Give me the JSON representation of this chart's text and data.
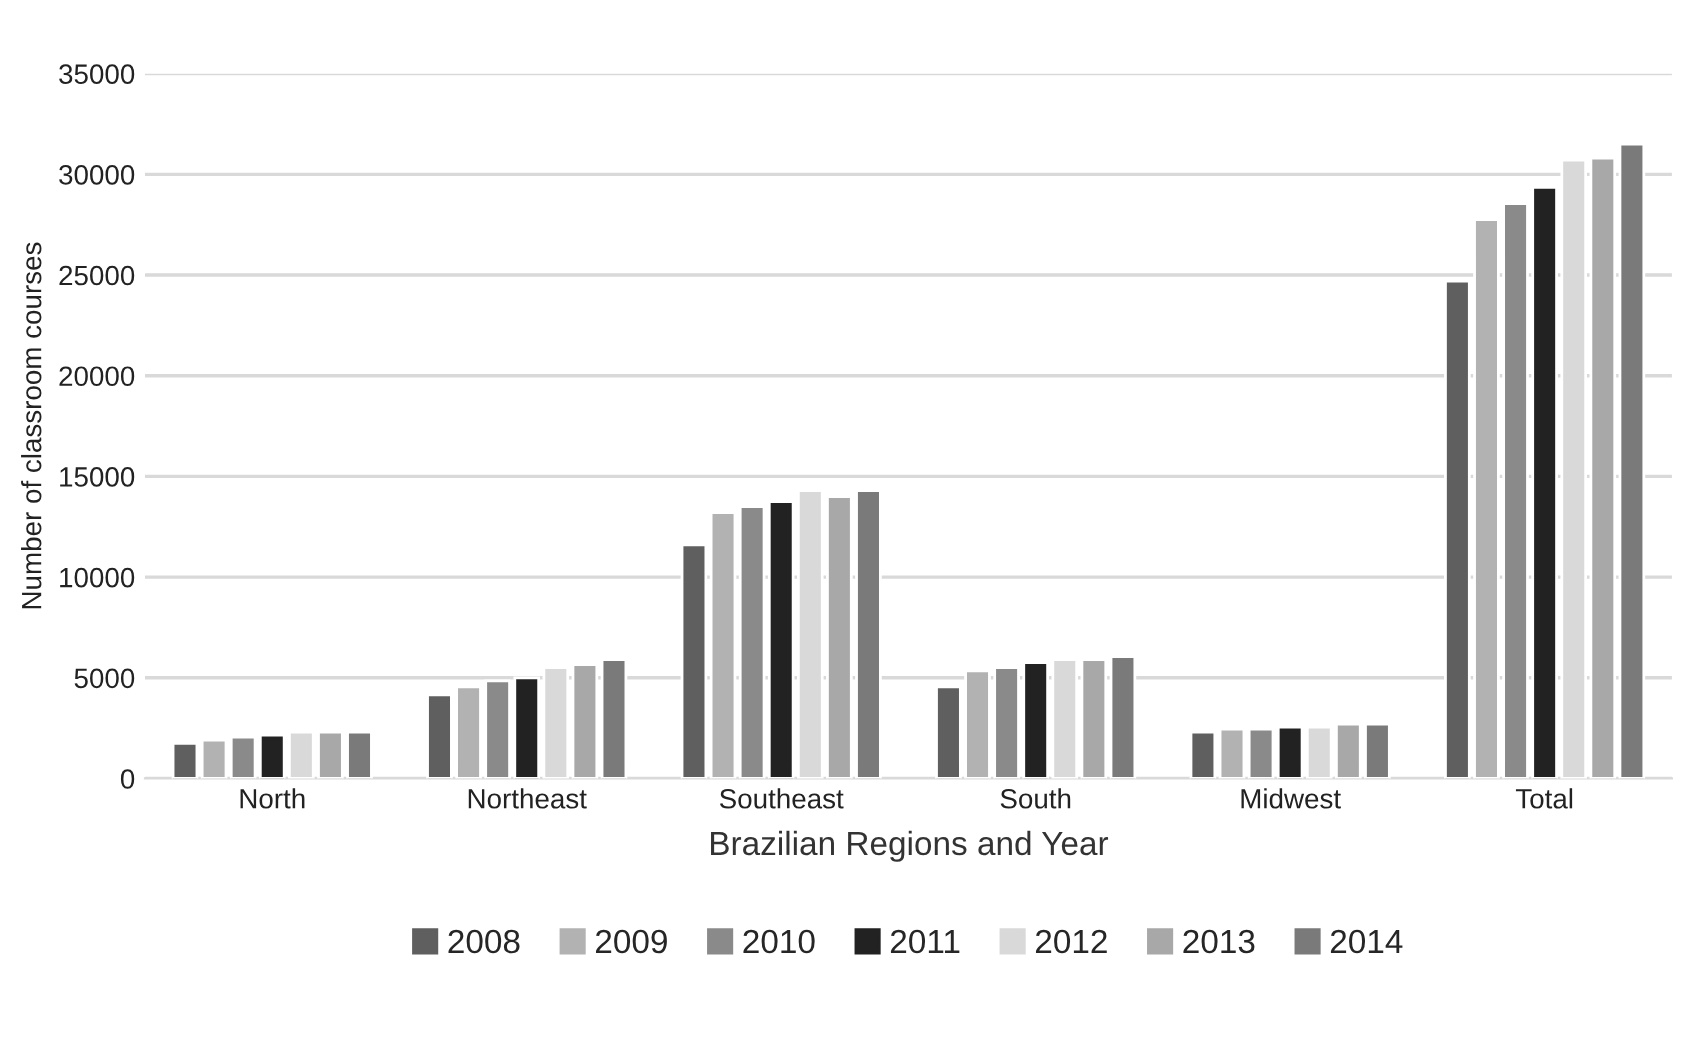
{
  "chart_data": {
    "type": "bar",
    "xlabel": "Brazilian Regions and Year",
    "ylabel": "Number of classroom courses",
    "categories": [
      "North",
      "Northeast",
      "Southeast",
      "South",
      "Midwest",
      "Total"
    ],
    "series": [
      {
        "name": "2008",
        "color": "#5f5f5f",
        "values": [
          1750,
          4150,
          11600,
          4550,
          2300,
          24700
        ]
      },
      {
        "name": "2009",
        "color": "#b2b2b2",
        "values": [
          1900,
          4550,
          13200,
          5350,
          2450,
          27750
        ]
      },
      {
        "name": "2010",
        "color": "#8a8a8a",
        "values": [
          2050,
          4850,
          13500,
          5500,
          2450,
          28550
        ]
      },
      {
        "name": "2011",
        "color": "#222222",
        "values": [
          2150,
          5000,
          13750,
          5750,
          2550,
          29350
        ]
      },
      {
        "name": "2012",
        "color": "#d9d9d9",
        "values": [
          2300,
          5500,
          14300,
          5900,
          2550,
          30700
        ]
      },
      {
        "name": "2013",
        "color": "#a8a8a8",
        "values": [
          2300,
          5650,
          14000,
          5900,
          2700,
          30800
        ]
      },
      {
        "name": "2014",
        "color": "#7a7a7a",
        "values": [
          2300,
          5900,
          14300,
          6050,
          2700,
          31500
        ]
      }
    ],
    "ylim": [
      0,
      35000
    ],
    "yticks": [
      0,
      5000,
      10000,
      15000,
      20000,
      25000,
      30000,
      35000
    ],
    "grid": "y",
    "legend": "bottom"
  }
}
